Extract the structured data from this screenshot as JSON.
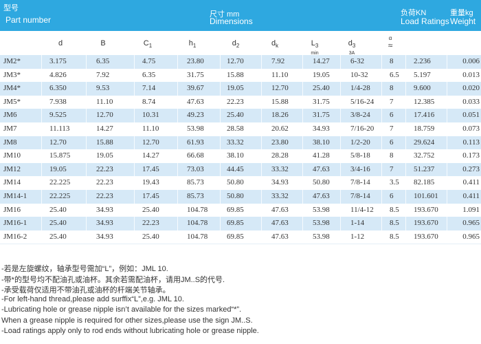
{
  "header": {
    "part_cn": "型号",
    "part_en": "Part number",
    "dim_cn": "尺寸 mm",
    "dim_en": "Dimensions",
    "load_cn": "负荷KN",
    "load_en": "Load Ratings",
    "weight_cn": "重量kg",
    "weight_en": "Weight"
  },
  "table": {
    "columns": [
      {
        "text": "d"
      },
      {
        "text": "B"
      },
      {
        "text": "C",
        "sub": "1"
      },
      {
        "text": "h",
        "sub": "1"
      },
      {
        "text": "d",
        "sub": "2"
      },
      {
        "text": "d",
        "sub": "k"
      },
      {
        "text": "L",
        "sub": "3",
        "note": "min"
      },
      {
        "text": "d",
        "sub": "3",
        "note": "3A"
      },
      {
        "text": "α",
        "note": "≈"
      }
    ],
    "rows": [
      [
        "JM2*",
        "3.175",
        "6.35",
        "4.75",
        "23.80",
        "12.70",
        "7.92",
        "14.27",
        "6-32",
        "8",
        "2.236",
        "0.006"
      ],
      [
        "JM3*",
        "4.826",
        "7.92",
        "6.35",
        "31.75",
        "15.88",
        "11.10",
        "19.05",
        "10-32",
        "6.5",
        "5.197",
        "0.013"
      ],
      [
        "JM4*",
        "6.350",
        "9.53",
        "7.14",
        "39.67",
        "19.05",
        "12.70",
        "25.40",
        "1/4-28",
        "8",
        "9.600",
        "0.020"
      ],
      [
        "JM5*",
        "7.938",
        "11.10",
        "8.74",
        "47.63",
        "22.23",
        "15.88",
        "31.75",
        "5/16-24",
        "7",
        "12.385",
        "0.033"
      ],
      [
        "JM6",
        "9.525",
        "12.70",
        "10.31",
        "49.23",
        "25.40",
        "18.26",
        "31.75",
        "3/8-24",
        "6",
        "17.416",
        "0.051"
      ],
      [
        "JM7",
        "11.113",
        "14.27",
        "11.10",
        "53.98",
        "28.58",
        "20.62",
        "34.93",
        "7/16-20",
        "7",
        "18.759",
        "0.073"
      ],
      [
        "JM8",
        "12.70",
        "15.88",
        "12.70",
        "61.93",
        "33.32",
        "23.80",
        "38.10",
        "1/2-20",
        "6",
        "29.624",
        "0.113"
      ],
      [
        "JM10",
        "15.875",
        "19.05",
        "14.27",
        "66.68",
        "38.10",
        "28.28",
        "41.28",
        "5/8-18",
        "8",
        "32.752",
        "0.173"
      ],
      [
        "JM12",
        "19.05",
        "22.23",
        "17.45",
        "73.03",
        "44.45",
        "33.32",
        "47.63",
        "3/4-16",
        "7",
        "51.237",
        "0.273"
      ],
      [
        "JM14",
        "22.225",
        "22.23",
        "19.43",
        "85.73",
        "50.80",
        "34.93",
        "50.80",
        "7/8-14",
        "3.5",
        "82.185",
        "0.411"
      ],
      [
        "JM14-1",
        "22.225",
        "22.23",
        "17.45",
        "85.73",
        "50.80",
        "33.32",
        "47.63",
        "7/8-14",
        "6",
        "101.601",
        "0.411"
      ],
      [
        "JM16",
        "25.40",
        "34.93",
        "25.40",
        "104.78",
        "69.85",
        "47.63",
        "53.98",
        "11/4-12",
        "8.5",
        "193.670",
        "1.091"
      ],
      [
        "JM16-1",
        "25.40",
        "34.93",
        "22.23",
        "104.78",
        "69.85",
        "47.63",
        "53.98",
        "1-14",
        "8.5",
        "193.670",
        "0.965"
      ],
      [
        "JM16-2",
        "25.40",
        "34.93",
        "25.40",
        "104.78",
        "69.85",
        "47.63",
        "53.98",
        "1-12",
        "8.5",
        "193.670",
        "0.965"
      ]
    ]
  },
  "notes": [
    "-若是左旋螺纹，轴承型号需加“L”，例如：JML 10.",
    "-带*的型号均不配油孔或油杯。其余若需配油杯，请用JM..S的代号.",
    "-承受载荷仅适用不带油孔或油杯的杆端关节轴承。",
    "-For left-hand thread,please add surffix“L”,e.g. JML 10.",
    "-Lubricating hole or grease nipple isn’t available for the sizes marked“*”.",
    "When a grease nipple is required for other sizes,please use the sign JM..S.",
    "-Load ratings apply only to rod ends without lubricating hole or grease nipple."
  ]
}
